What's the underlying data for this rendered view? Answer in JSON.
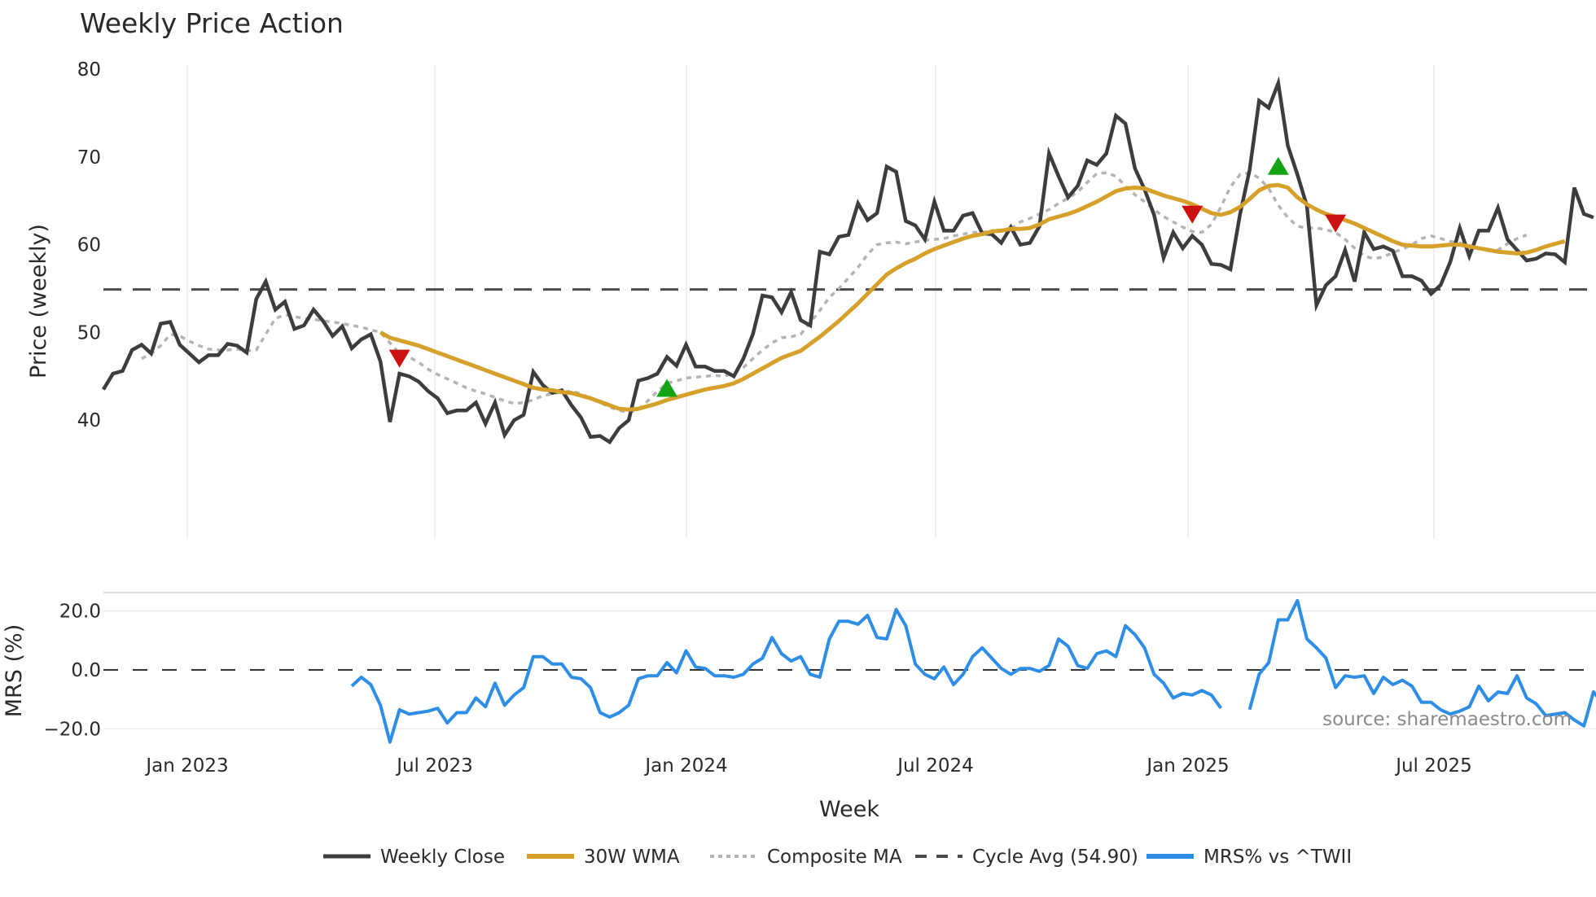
{
  "title": "Weekly Price Action",
  "source_note": "source: sharemaestro.com",
  "colors": {
    "close": "#3d3d3d",
    "wma": "#d6a12b",
    "composite": "#b4b4b4",
    "cycle": "#4a4a4a",
    "mrs": "#2e8ee6",
    "buy": "#13a313",
    "sell": "#cc1111",
    "grid": "#e8ecf2"
  },
  "chart_data": [
    {
      "type": "line",
      "panel": "price",
      "title": "Weekly Price Action",
      "xlabel": "Week",
      "ylabel": "Price (weekly)",
      "ylim": [
        35,
        81
      ],
      "yticks": [
        40,
        50,
        60,
        70,
        80
      ],
      "xticks": [
        "Jan 2023",
        "Jul 2023",
        "Jan 2024",
        "Jul 2024",
        "Jan 2025",
        "Jul 2025"
      ],
      "grid": true,
      "x_start_week": "2022-11-14",
      "series": [
        {
          "name": "Weekly Close",
          "start_index": 0,
          "values": [
            43.5,
            45.3,
            45.6,
            48.0,
            48.6,
            47.6,
            51.0,
            51.2,
            48.6,
            47.6,
            46.6,
            47.4,
            47.4,
            48.7,
            48.5,
            47.7,
            53.8,
            55.8,
            52.6,
            53.5,
            50.4,
            50.8,
            52.6,
            51.3,
            49.6,
            50.7,
            48.2,
            49.2,
            49.8,
            46.7,
            39.8,
            45.3,
            45.0,
            44.4,
            43.3,
            42.5,
            40.8,
            41.1,
            41.1,
            42.0,
            39.6,
            42.0,
            38.3,
            40.0,
            40.6,
            45.5,
            44.0,
            43.1,
            43.4,
            41.7,
            40.3,
            38.1,
            38.2,
            37.5,
            39.1,
            40.0,
            44.5,
            44.8,
            45.3,
            47.2,
            46.2,
            48.6,
            46.1,
            46.1,
            45.6,
            45.6,
            45.0,
            47.0,
            49.8,
            54.2,
            54.0,
            52.3,
            54.6,
            51.4,
            50.8,
            59.2,
            58.9,
            60.9,
            61.1,
            64.7,
            62.8,
            63.6,
            68.9,
            68.3,
            62.7,
            62.2,
            60.6,
            64.9,
            61.6,
            61.6,
            63.3,
            63.6,
            61.3,
            61.2,
            60.2,
            62.0,
            60.0,
            60.2,
            62.1,
            70.4,
            67.8,
            65.4,
            66.7,
            69.6,
            69.1,
            70.4,
            74.7,
            73.8,
            68.7,
            66.3,
            63.4,
            58.5,
            61.4,
            59.6,
            61.0,
            60.0,
            57.8,
            57.7,
            57.2,
            63.5,
            68.5,
            76.4,
            75.6,
            78.4,
            71.3,
            68.0,
            64.4,
            53.1,
            55.4,
            56.4,
            59.4,
            55.8,
            61.4,
            59.5,
            59.8,
            59.3,
            56.4,
            56.4,
            55.9,
            54.4,
            55.4,
            58.0,
            61.9,
            58.7,
            61.6,
            61.6,
            64.2,
            60.6,
            59.4,
            58.2,
            58.4,
            59.0,
            58.9,
            58.0,
            66.5,
            63.5,
            63.1
          ]
        },
        {
          "name": "30W WMA",
          "start_index": 29,
          "values": [
            50.0,
            49.4,
            49.1,
            48.8,
            48.5,
            48.1,
            47.7,
            47.3,
            46.9,
            46.5,
            46.1,
            45.7,
            45.3,
            44.9,
            44.5,
            44.1,
            43.7,
            43.5,
            43.4,
            43.2,
            43.1,
            42.8,
            42.5,
            42.1,
            41.7,
            41.3,
            41.2,
            41.3,
            41.6,
            41.9,
            42.3,
            42.6,
            42.9,
            43.2,
            43.5,
            43.7,
            43.9,
            44.2,
            44.7,
            45.3,
            45.9,
            46.5,
            47.1,
            47.5,
            47.9,
            48.7,
            49.5,
            50.4,
            51.3,
            52.3,
            53.3,
            54.4,
            55.5,
            56.6,
            57.3,
            57.9,
            58.4,
            59.0,
            59.5,
            59.9,
            60.3,
            60.7,
            61.0,
            61.2,
            61.5,
            61.6,
            61.8,
            61.8,
            61.9,
            62.3,
            62.9,
            63.2,
            63.5,
            63.9,
            64.4,
            64.9,
            65.5,
            66.1,
            66.4,
            66.5,
            66.4,
            66.0,
            65.6,
            65.3,
            65.0,
            64.6,
            64.1,
            63.6,
            63.4,
            63.7,
            64.3,
            65.2,
            66.2,
            66.7,
            66.8,
            66.5,
            65.4,
            64.6,
            64.0,
            63.5,
            63.2,
            62.8,
            62.4,
            61.9,
            61.4,
            60.9,
            60.4,
            60.0,
            59.9,
            59.8,
            59.8,
            59.9,
            60.0,
            60.0,
            59.8,
            59.6,
            59.4,
            59.2,
            59.1,
            59.0,
            59.1,
            59.4,
            59.8,
            60.1,
            60.4
          ]
        },
        {
          "name": "Composite MA",
          "start_index": 4,
          "values": [
            47.0,
            47.6,
            48.5,
            49.8,
            49.6,
            49.0,
            48.5,
            48.1,
            48.0,
            48.0,
            48.1,
            47.9,
            48.0,
            49.8,
            51.6,
            52.0,
            51.8,
            51.6,
            51.5,
            51.3,
            51.2,
            51.0,
            50.8,
            50.6,
            50.3,
            50.0,
            48.8,
            47.6,
            47.2,
            46.6,
            45.8,
            45.2,
            44.7,
            44.2,
            43.7,
            43.3,
            43.0,
            42.6,
            42.2,
            41.9,
            42.0,
            42.3,
            42.8,
            43.0,
            43.2,
            43.3,
            43.0,
            42.5,
            42.0,
            41.5,
            41.1,
            40.9,
            41.2,
            42.2,
            43.3,
            44.2,
            44.5,
            44.8,
            44.9,
            45.0,
            45.1,
            45.0,
            45.4,
            46.0,
            47.0,
            48.0,
            48.8,
            49.4,
            49.5,
            49.8,
            51.1,
            52.5,
            54.0,
            55.0,
            56.2,
            57.4,
            58.9,
            60.0,
            60.2,
            60.3,
            60.1,
            60.3,
            60.5,
            60.6,
            60.7,
            61.0,
            61.2,
            61.4,
            61.4,
            61.6,
            61.6,
            61.8,
            62.6,
            63.0,
            63.5,
            64.0,
            64.7,
            65.3,
            66.0,
            67.1,
            68.1,
            68.2,
            67.8,
            66.7,
            65.7,
            64.9,
            64.0,
            63.2,
            62.6,
            62.0,
            61.5,
            61.4,
            62.3,
            64.3,
            66.6,
            68.0,
            68.2,
            67.6,
            66.4,
            64.5,
            63.1,
            62.1,
            61.9,
            61.9,
            61.7,
            61.4,
            60.6,
            59.6,
            58.7,
            58.4,
            58.6,
            59.1,
            59.5,
            60.0,
            60.7,
            61.0,
            60.7,
            60.4,
            60.2,
            59.9,
            59.6,
            59.3,
            59.4,
            60.1,
            60.7,
            61.1
          ]
        },
        {
          "name": "Cycle Avg (54.90)",
          "constant": 54.9
        }
      ],
      "markers": [
        {
          "type": "sell",
          "index": 31,
          "value": 47.2
        },
        {
          "type": "buy",
          "index": 59,
          "value": 43.5
        },
        {
          "type": "sell",
          "index": 114,
          "value": 63.6
        },
        {
          "type": "buy",
          "index": 123,
          "value": 68.8
        },
        {
          "type": "sell",
          "index": 129,
          "value": 62.6
        }
      ]
    },
    {
      "type": "line",
      "panel": "mrs",
      "ylabel": "MRS (%)",
      "ylim": [
        -27,
        28
      ],
      "yticks": [
        "20.0",
        "0.0",
        "−20.0"
      ],
      "ytick_values": [
        20,
        0,
        -20
      ],
      "grid": true,
      "zero_line": 0,
      "series": [
        {
          "name": "MRS% vs ^TWII",
          "start_index": 26,
          "values": [
            -5.5,
            -2.5,
            -5.0,
            -12.0,
            -24.5,
            -13.5,
            -15.0,
            -14.5,
            -14.0,
            -13.0,
            -18.0,
            -14.5,
            -14.5,
            -9.5,
            -12.5,
            -4.5,
            -12.0,
            -8.5,
            -6.0,
            4.5,
            4.5,
            2.0,
            2.0,
            -2.5,
            -3.0,
            -6.0,
            -14.5,
            -16.0,
            -14.5,
            -12.0,
            -3.0,
            -2.0,
            -2.0,
            2.5,
            -1.0,
            6.5,
            1.0,
            0.5,
            -2.0,
            -2.0,
            -2.5,
            -1.5,
            2.0,
            4.0,
            11.0,
            5.5,
            3.0,
            4.5,
            -1.5,
            -2.5,
            10.5,
            16.5,
            16.5,
            15.5,
            18.5,
            11.0,
            10.5,
            20.5,
            15.0,
            2.0,
            -1.5,
            -3.0,
            1.0,
            -5.0,
            -1.5,
            4.5,
            7.5,
            4.0,
            0.5,
            -1.5,
            0.5,
            0.5,
            -0.5,
            1.5,
            10.5,
            8.0,
            1.5,
            0.5,
            5.5,
            6.5,
            4.5,
            15.0,
            12.0,
            7.5,
            -1.5,
            -4.5,
            -9.5,
            -8.0,
            -8.5,
            -7.0,
            -8.5,
            -13.0,
            null,
            null,
            -13.5,
            -1.5,
            2.5,
            17.0,
            17.0,
            23.5,
            10.5,
            7.5,
            4.0,
            -6.0,
            -2.0,
            -2.5,
            -2.0,
            -8.0,
            -2.5,
            -5.0,
            -3.5,
            -5.5,
            -11.0,
            -11.0,
            -13.5,
            -15.0,
            -14.0,
            -12.5,
            -5.5,
            -10.5,
            -7.5,
            -8.0,
            -2.0,
            -9.5,
            -11.5,
            -15.5,
            -15.0,
            -14.5,
            -17.0,
            -19.0,
            -7.5,
            -11.5,
            -12.0
          ]
        }
      ]
    }
  ],
  "legend": {
    "items": [
      {
        "label": "Weekly Close",
        "style": "solid-dark"
      },
      {
        "label": "30W WMA",
        "style": "solid-gold"
      },
      {
        "label": "Composite MA",
        "style": "dotted-grey"
      },
      {
        "label": "Cycle Avg (54.90)",
        "style": "dashed-dark"
      },
      {
        "label": "MRS% vs ^TWII",
        "style": "solid-blue"
      }
    ]
  }
}
